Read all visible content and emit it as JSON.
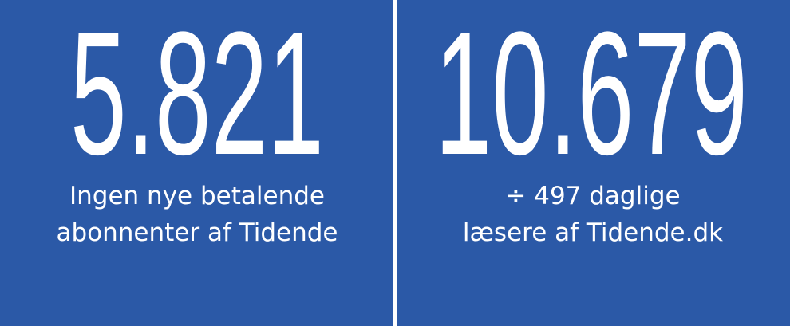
{
  "panels": [
    {
      "number": "5.821",
      "caption": [
        "Ingen nye betalende",
        "abonnenter af Tidende"
      ]
    },
    {
      "number": "10.679",
      "caption": [
        "÷ 497 daglige",
        "læsere af Tidende.dk"
      ]
    }
  ]
}
